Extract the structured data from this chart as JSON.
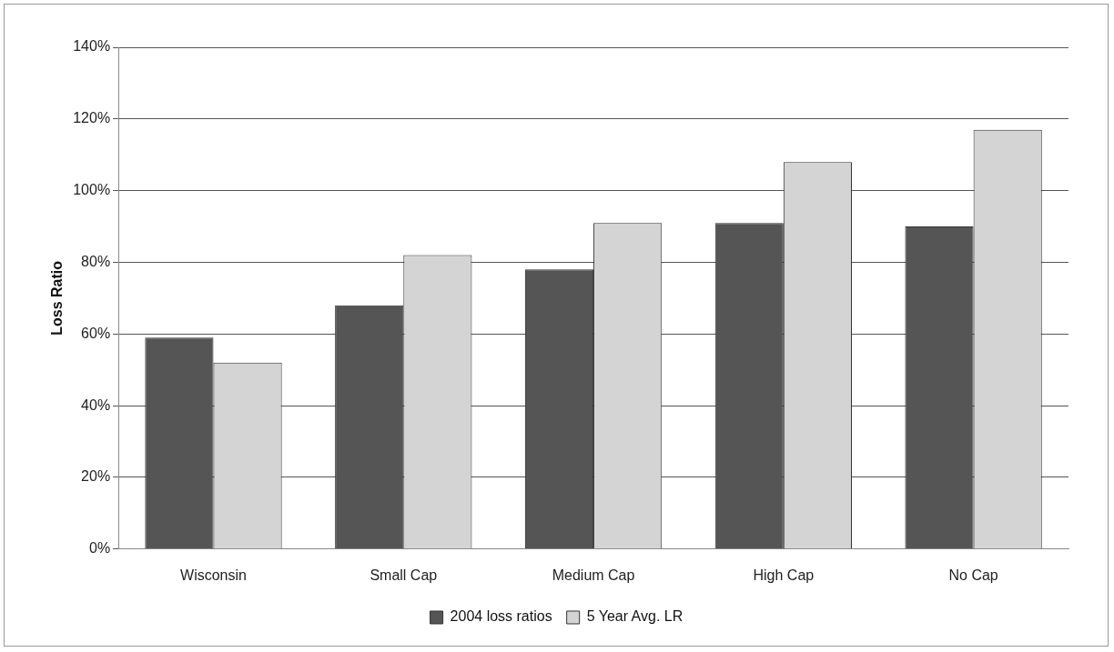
{
  "chart_data": {
    "type": "bar",
    "ylabel": "Loss Ratio",
    "categories": [
      "Wisconsin",
      "Small Cap",
      "Medium Cap",
      "High Cap",
      "No Cap"
    ],
    "series": [
      {
        "name": "2004 loss ratios",
        "color": "#555555",
        "values": [
          59,
          68,
          78,
          91,
          90
        ]
      },
      {
        "name": "5 Year Avg. LR",
        "color": "#d4d4d4",
        "values": [
          52,
          82,
          91,
          108,
          117
        ]
      }
    ],
    "ylim": [
      0,
      140
    ],
    "yticks": [
      {
        "value": 0,
        "label": "0%"
      },
      {
        "value": 20,
        "label": "20%"
      },
      {
        "value": 40,
        "label": "40%"
      },
      {
        "value": 60,
        "label": "60%"
      },
      {
        "value": 80,
        "label": "80%"
      },
      {
        "value": 100,
        "label": "100%"
      },
      {
        "value": 120,
        "label": "120%"
      },
      {
        "value": 140,
        "label": "140%"
      }
    ],
    "grid": "y",
    "legend": "bottom"
  }
}
